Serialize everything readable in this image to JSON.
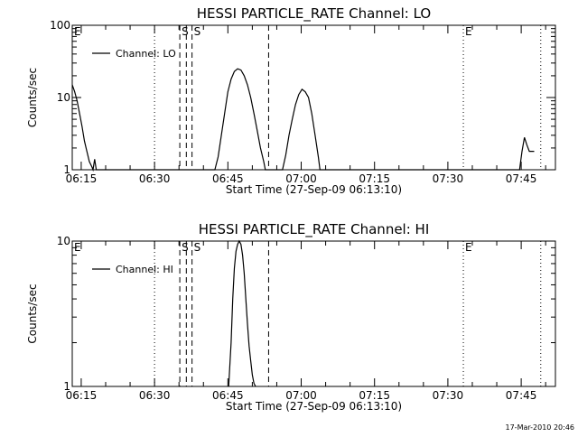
{
  "chart_data": [
    {
      "type": "line",
      "title": "HESSI PARTICLE_RATE Channel: LO",
      "xlabel": "Start Time (27-Sep-09 06:13:10)",
      "ylabel": "Counts/sec",
      "yscale": "log",
      "ylim": [
        1,
        100
      ],
      "yticks": [
        1,
        10,
        100
      ],
      "ytick_labels": [
        "1",
        "10",
        "100"
      ],
      "xlim": [
        "06:13:10",
        "07:52:00"
      ],
      "xticks": [
        "06:15",
        "06:30",
        "06:45",
        "07:00",
        "07:15",
        "07:30",
        "07:45"
      ],
      "legend": {
        "entries": [
          "Channel: LO"
        ],
        "position": "top-left"
      },
      "grid": false,
      "series": [
        {
          "name": "Channel: LO",
          "x": [
            "06:13:10",
            "06:13:40",
            "06:14:10",
            "06:14:40",
            "06:15:10",
            "06:15:40",
            "06:16:10",
            "06:16:40",
            "06:17:10",
            "06:17:25",
            "06:17:45",
            "06:18:05",
            "06:42:20",
            "06:43:00",
            "06:43:40",
            "06:44:20",
            "06:45:00",
            "06:45:40",
            "06:46:20",
            "06:47:00",
            "06:47:40",
            "06:48:20",
            "06:49:00",
            "06:49:40",
            "06:50:20",
            "06:51:00",
            "06:51:40",
            "06:52:20",
            "06:52:40",
            "06:56:10",
            "06:56:50",
            "06:57:30",
            "06:58:10",
            "06:58:50",
            "06:59:30",
            "07:00:10",
            "07:00:50",
            "07:01:30",
            "07:02:10",
            "07:02:50",
            "07:03:30",
            "07:03:50",
            "07:44:40",
            "07:45:10",
            "07:45:40",
            "07:46:10",
            "07:46:40",
            "07:47:40"
          ],
          "y": [
            15,
            12,
            9,
            6,
            4,
            2.5,
            1.8,
            1.3,
            1.1,
            1,
            1.4,
            1,
            1,
            1.5,
            3,
            6,
            12,
            18,
            23,
            25,
            24,
            20,
            15,
            10,
            6,
            3.5,
            2,
            1.3,
            1,
            1,
            1.6,
            3,
            5,
            8,
            11,
            13,
            12,
            10,
            6,
            3,
            1.5,
            1,
            1,
            1.8,
            2.8,
            2.2,
            1.8,
            1.8
          ]
        }
      ],
      "markers": [
        {
          "label": "E",
          "time": "06:13:10",
          "style": "dotted"
        },
        {
          "label": "",
          "time": "06:30:00",
          "style": "dotted"
        },
        {
          "label": "S",
          "time": "06:35:10",
          "style": "dashed"
        },
        {
          "label": "",
          "time": "06:36:30",
          "style": "dashed"
        },
        {
          "label": "S",
          "time": "06:37:40",
          "style": "dashed"
        },
        {
          "label": "",
          "time": "06:53:20",
          "style": "dashed"
        },
        {
          "label": "E",
          "time": "07:33:10",
          "style": "dotted"
        },
        {
          "label": "",
          "time": "07:49:00",
          "style": "dotted"
        }
      ]
    },
    {
      "type": "line",
      "title": "HESSI PARTICLE_RATE Channel: HI",
      "xlabel": "Start Time (27-Sep-09 06:13:10)",
      "ylabel": "Counts/sec",
      "yscale": "log",
      "ylim": [
        1,
        10
      ],
      "yticks": [
        1,
        10
      ],
      "ytick_labels": [
        "1",
        "10"
      ],
      "xlim": [
        "06:13:10",
        "07:52:00"
      ],
      "xticks": [
        "06:15",
        "06:30",
        "06:45",
        "07:00",
        "07:15",
        "07:30",
        "07:45"
      ],
      "legend": {
        "entries": [
          "Channel: HI"
        ],
        "position": "top-left"
      },
      "grid": false,
      "series": [
        {
          "name": "Channel: HI",
          "x": [
            "06:45:10",
            "06:45:40",
            "06:46:00",
            "06:46:20",
            "06:46:40",
            "06:47:00",
            "06:47:20",
            "06:47:40",
            "06:48:00",
            "06:48:20",
            "06:48:40",
            "06:49:00",
            "06:49:20",
            "06:49:40",
            "06:50:00",
            "06:50:20",
            "06:50:40"
          ],
          "y": [
            1,
            2,
            4,
            6.5,
            8.5,
            9.5,
            10,
            9.5,
            8,
            6,
            4,
            2.7,
            1.9,
            1.5,
            1.2,
            1.05,
            1
          ]
        }
      ],
      "markers": [
        {
          "label": "E",
          "time": "06:13:10",
          "style": "dotted"
        },
        {
          "label": "",
          "time": "06:30:00",
          "style": "dotted"
        },
        {
          "label": "S",
          "time": "06:35:10",
          "style": "dashed"
        },
        {
          "label": "",
          "time": "06:36:30",
          "style": "dashed"
        },
        {
          "label": "S",
          "time": "06:37:40",
          "style": "dashed"
        },
        {
          "label": "",
          "time": "06:53:20",
          "style": "dashed"
        },
        {
          "label": "E",
          "time": "07:33:10",
          "style": "dotted"
        },
        {
          "label": "",
          "time": "07:49:00",
          "style": "dotted"
        }
      ]
    }
  ],
  "footer": "17-Mar-2010 20:46"
}
